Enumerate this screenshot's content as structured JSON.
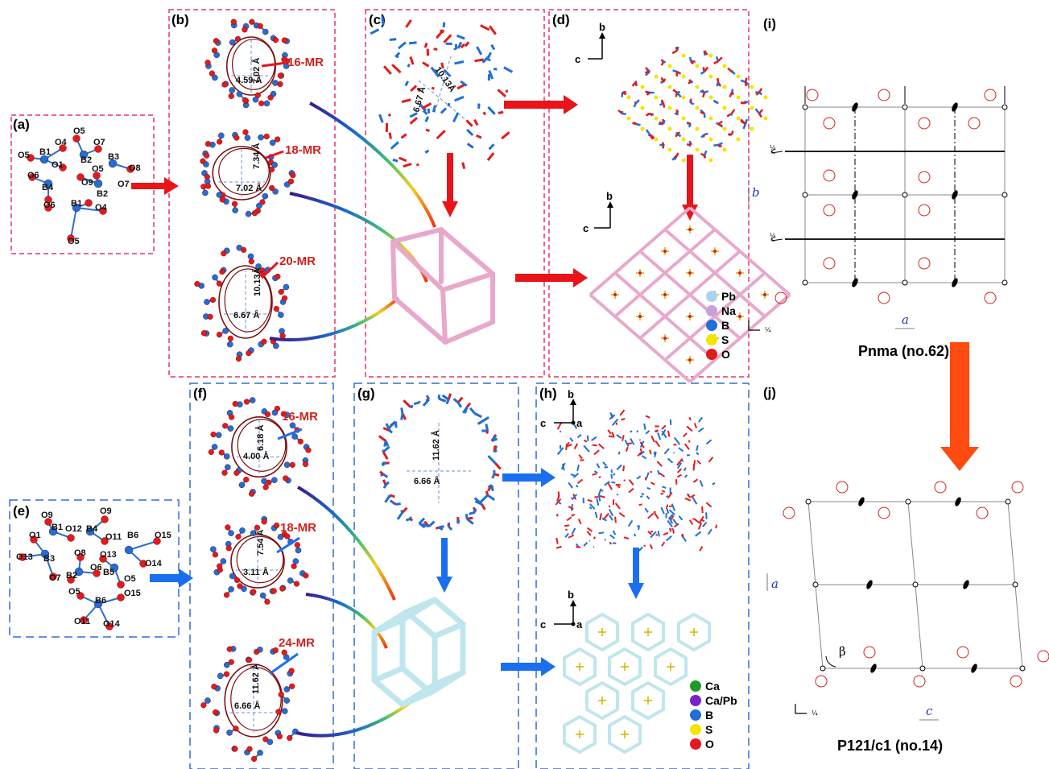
{
  "panels": {
    "a": {
      "label": "(a)",
      "atoms": [
        "O5",
        "O4",
        "O7",
        "O5",
        "B1",
        "B2",
        "B3",
        "O8",
        "O1",
        "O9",
        "O6",
        "B4",
        "O5",
        "O7",
        "B2",
        "O6",
        "B1",
        "O4",
        "O5"
      ]
    },
    "b": {
      "label": "(b)",
      "rings": [
        {
          "label": "16-MR",
          "d1": "7.02 Å",
          "d2": "4.59 Å"
        },
        {
          "label": "18-MR",
          "d1": "7.34 Å",
          "d2": "7.02 Å"
        },
        {
          "label": "20-MR",
          "d1": "10.13Å",
          "d2": "6.67 Å"
        }
      ]
    },
    "c": {
      "label": "(c)",
      "d1": "10.13Å",
      "d2": "6.67 Å"
    },
    "d": {
      "label": "(d)",
      "axis_b": "b",
      "axis_c": "c",
      "legend": [
        "Pb",
        "Na",
        "B",
        "S",
        "O"
      ]
    },
    "e": {
      "label": "(e)",
      "atoms": [
        "O9",
        "O9",
        "O1",
        "B1",
        "O12",
        "B4",
        "O11",
        "B6",
        "O15",
        "O13",
        "B3",
        "O8",
        "O13",
        "O14",
        "O7",
        "B2",
        "O6",
        "B5",
        "O5",
        "O5",
        "B6",
        "O15",
        "O11",
        "O14"
      ]
    },
    "f": {
      "label": "(f)",
      "rings": [
        {
          "label": "16-MR",
          "d1": "6.18 Å",
          "d2": "4.00 Å"
        },
        {
          "label": "18-MR",
          "d1": "7.54 Å",
          "d2": "3.11 Å"
        },
        {
          "label": "24-MR",
          "d1": "11.62 Å",
          "d2": "6.66 Å"
        }
      ]
    },
    "g": {
      "label": "(g)",
      "d1": "11.62 Å",
      "d2": "6.66 Å"
    },
    "h": {
      "label": "(h)",
      "axis_b": "b",
      "axis_c": "c",
      "axis_a": "a",
      "legend": [
        "Ca",
        "Ca/Pb",
        "B",
        "S",
        "O"
      ]
    },
    "i": {
      "label": "(i)",
      "space_group": "Pnma (no.62)",
      "axis_b": "b",
      "axis_a": "a",
      "frac": "¼"
    },
    "j": {
      "label": "(j)",
      "space_group": "P121/c1 (no.14)",
      "axis_a": "a",
      "axis_c": "c",
      "beta": "β",
      "frac": "¼"
    }
  },
  "colors": {
    "red_frame": "#e8336a",
    "blue_frame": "#2f6fd6",
    "arrow_red": "#e8141a",
    "arrow_blue": "#1a6ff0",
    "oxygen": "#e31a1c",
    "boron": "#1f6fd6",
    "pink_net": "#e8a8cc",
    "cyan_net": "#bfe6ec",
    "orange_arrow": "#ff4a10"
  },
  "legend_colors": {
    "Pb": "#a9d4ef",
    "Na": "#c9a0dc",
    "B": "#1f6fd6",
    "S": "#f2e600",
    "O": "#e31a1c",
    "Ca": "#1f9a2a",
    "Ca/Pb": "#7a22c8"
  }
}
